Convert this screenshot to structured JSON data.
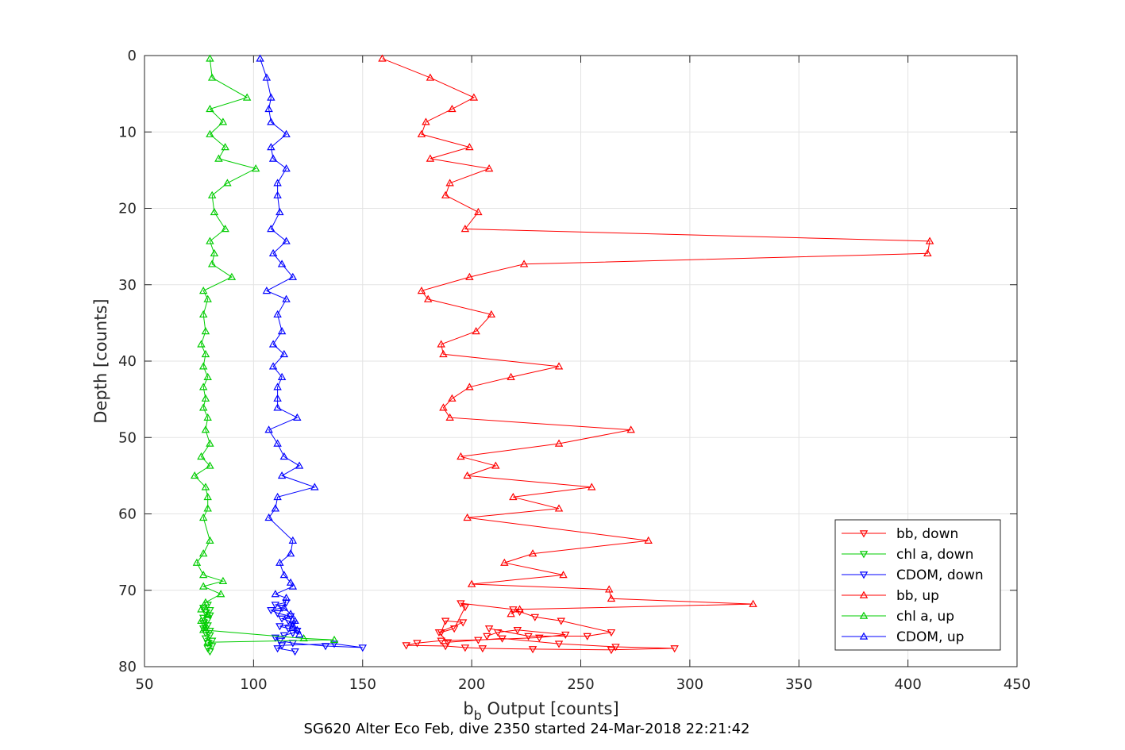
{
  "chart_data": {
    "type": "line",
    "title": "SG620 Alter Eco Feb, dive 2350 started 24-Mar-2018 22:21:42",
    "xlabel_main": "b",
    "xlabel_sub": "b",
    "xlabel_rest": " Output [counts]",
    "ylabel": "Depth [counts]",
    "xlim": [
      50,
      450
    ],
    "ylim": [
      0,
      80
    ],
    "y_reversed": true,
    "grid": true,
    "legend_position": "bottom-right",
    "xticks": [
      50,
      100,
      150,
      200,
      250,
      300,
      350,
      400,
      450
    ],
    "yticks": [
      0,
      10,
      20,
      30,
      40,
      50,
      60,
      70,
      80
    ],
    "xtick_labels": [
      "50",
      "100",
      "150",
      "200",
      "250",
      "300",
      "350",
      "400",
      "450"
    ],
    "ytick_labels": [
      "0",
      "10",
      "20",
      "30",
      "40",
      "50",
      "60",
      "70",
      "80"
    ],
    "series": [
      {
        "name": "bb, down",
        "color": "#ff0000",
        "marker": "triangle-down",
        "points": [
          [
            207,
            76.0
          ],
          [
            212,
            75.5
          ],
          [
            221,
            75.2
          ],
          [
            243,
            75.8
          ],
          [
            231,
            76.2
          ],
          [
            203,
            76.5
          ],
          [
            186,
            76.6
          ],
          [
            175,
            76.9
          ],
          [
            170,
            77.2
          ],
          [
            188,
            77.3
          ],
          [
            197,
            77.5
          ],
          [
            205,
            77.6
          ],
          [
            228,
            77.7
          ],
          [
            264,
            77.8
          ],
          [
            293,
            77.6
          ],
          [
            266,
            77.4
          ],
          [
            240,
            77.0
          ],
          [
            214,
            76.3
          ],
          [
            189,
            76.8
          ],
          [
            185,
            75.5
          ],
          [
            196,
            74.2
          ],
          [
            188,
            74.0
          ],
          [
            186,
            75.5
          ],
          [
            192,
            75.0
          ],
          [
            197,
            72.2
          ],
          [
            195,
            71.7
          ],
          [
            219,
            72.5
          ],
          [
            222,
            72.8
          ],
          [
            229,
            73.5
          ],
          [
            241,
            74.0
          ],
          [
            264,
            75.5
          ],
          [
            253,
            76.0
          ],
          [
            226,
            76.0
          ],
          [
            208,
            75.0
          ]
        ]
      },
      {
        "name": "chl a, down",
        "color": "#00cc00",
        "marker": "triangle-down",
        "points": [
          [
            80,
            78.0
          ],
          [
            79,
            77.6
          ],
          [
            81,
            77.3
          ],
          [
            79,
            76.9
          ],
          [
            81,
            76.6
          ],
          [
            78,
            76.3
          ],
          [
            80,
            75.9
          ],
          [
            78,
            75.6
          ],
          [
            80,
            75.3
          ],
          [
            77,
            75.0
          ],
          [
            79,
            74.6
          ],
          [
            77,
            74.3
          ],
          [
            79,
            73.9
          ],
          [
            77,
            73.6
          ],
          [
            80,
            73.3
          ],
          [
            78,
            72.9
          ],
          [
            80,
            72.6
          ],
          [
            77,
            72.3
          ],
          [
            79,
            71.9
          ]
        ]
      },
      {
        "name": "CDOM, down",
        "color": "#0000ff",
        "marker": "triangle-down",
        "points": [
          [
            119,
            78.0
          ],
          [
            111,
            77.6
          ],
          [
            113,
            77.2
          ],
          [
            137,
            77.0
          ],
          [
            150,
            77.5
          ],
          [
            133,
            77.3
          ],
          [
            118,
            76.9
          ],
          [
            112,
            76.6
          ],
          [
            110,
            76.2
          ],
          [
            114,
            75.9
          ],
          [
            118,
            75.6
          ],
          [
            120,
            75.3
          ],
          [
            116,
            75.0
          ],
          [
            112,
            74.7
          ],
          [
            118,
            74.4
          ],
          [
            116,
            74.0
          ],
          [
            113,
            73.7
          ],
          [
            117,
            73.4
          ],
          [
            111,
            73.0
          ],
          [
            108,
            72.6
          ],
          [
            113,
            72.3
          ],
          [
            110,
            71.9
          ],
          [
            115,
            71.6
          ]
        ]
      },
      {
        "name": "bb, up",
        "color": "#ff0000",
        "marker": "triangle-up",
        "points": [
          [
            159,
            0.4
          ],
          [
            181,
            2.9
          ],
          [
            201,
            5.5
          ],
          [
            191,
            7.0
          ],
          [
            179,
            8.7
          ],
          [
            177,
            10.3
          ],
          [
            199,
            12.0
          ],
          [
            181,
            13.5
          ],
          [
            208,
            14.8
          ],
          [
            190,
            16.7
          ],
          [
            188,
            18.3
          ],
          [
            203,
            20.5
          ],
          [
            197,
            22.7
          ],
          [
            410,
            24.3
          ],
          [
            409,
            25.9
          ],
          [
            224,
            27.3
          ],
          [
            199,
            29.0
          ],
          [
            177,
            30.8
          ],
          [
            180,
            31.9
          ],
          [
            209,
            33.9
          ],
          [
            202,
            36.1
          ],
          [
            186,
            37.8
          ],
          [
            187,
            39.1
          ],
          [
            240,
            40.7
          ],
          [
            218,
            42.1
          ],
          [
            199,
            43.4
          ],
          [
            191,
            44.9
          ],
          [
            187,
            46.1
          ],
          [
            190,
            47.4
          ],
          [
            273,
            49.0
          ],
          [
            240,
            50.8
          ],
          [
            195,
            52.5
          ],
          [
            211,
            53.7
          ],
          [
            198,
            55.0
          ],
          [
            255,
            56.5
          ],
          [
            219,
            57.8
          ],
          [
            240,
            59.3
          ],
          [
            198,
            60.5
          ],
          [
            281,
            63.5
          ],
          [
            228,
            65.2
          ],
          [
            215,
            66.4
          ],
          [
            242,
            68.0
          ],
          [
            200,
            69.2
          ],
          [
            263,
            69.9
          ],
          [
            264,
            71.1
          ],
          [
            329,
            71.8
          ],
          [
            222,
            72.5
          ],
          [
            218,
            73.1
          ]
        ]
      },
      {
        "name": "chl a, up",
        "color": "#00cc00",
        "marker": "triangle-up",
        "points": [
          [
            80,
            0.4
          ],
          [
            81,
            2.9
          ],
          [
            97,
            5.5
          ],
          [
            80,
            7.0
          ],
          [
            86,
            8.7
          ],
          [
            80,
            10.3
          ],
          [
            87,
            12.0
          ],
          [
            84,
            13.5
          ],
          [
            101,
            14.8
          ],
          [
            88,
            16.7
          ],
          [
            81,
            18.3
          ],
          [
            82,
            20.5
          ],
          [
            87,
            22.7
          ],
          [
            80,
            24.3
          ],
          [
            82,
            25.9
          ],
          [
            81,
            27.3
          ],
          [
            90,
            29.0
          ],
          [
            77,
            30.8
          ],
          [
            79,
            31.9
          ],
          [
            77,
            33.9
          ],
          [
            78,
            36.1
          ],
          [
            76,
            37.8
          ],
          [
            78,
            39.1
          ],
          [
            77,
            40.7
          ],
          [
            79,
            42.1
          ],
          [
            77,
            43.4
          ],
          [
            78,
            44.9
          ],
          [
            77,
            46.1
          ],
          [
            79,
            47.4
          ],
          [
            78,
            49.0
          ],
          [
            80,
            50.8
          ],
          [
            76,
            52.5
          ],
          [
            80,
            53.7
          ],
          [
            73,
            55.0
          ],
          [
            78,
            56.5
          ],
          [
            79,
            57.8
          ],
          [
            79,
            59.3
          ],
          [
            77,
            60.5
          ],
          [
            80,
            63.5
          ],
          [
            77,
            65.2
          ],
          [
            74,
            66.4
          ],
          [
            77,
            68.0
          ],
          [
            86,
            68.8
          ],
          [
            77,
            69.5
          ],
          [
            85,
            70.5
          ],
          [
            78,
            71.6
          ],
          [
            76,
            72.5
          ],
          [
            79,
            73.1
          ],
          [
            76,
            74.0
          ],
          [
            78,
            74.6
          ],
          [
            77,
            75.2
          ],
          [
            123,
            76.3
          ],
          [
            137,
            76.5
          ],
          [
            79,
            76.8
          ]
        ]
      },
      {
        "name": "CDOM, up",
        "color": "#0000ff",
        "marker": "triangle-up",
        "points": [
          [
            103,
            0.4
          ],
          [
            106,
            2.9
          ],
          [
            108,
            5.5
          ],
          [
            107,
            7.0
          ],
          [
            108,
            8.7
          ],
          [
            115,
            10.3
          ],
          [
            108,
            12.0
          ],
          [
            109,
            13.5
          ],
          [
            115,
            14.8
          ],
          [
            111,
            16.7
          ],
          [
            111,
            18.3
          ],
          [
            112,
            20.5
          ],
          [
            108,
            22.7
          ],
          [
            115,
            24.3
          ],
          [
            109,
            25.9
          ],
          [
            113,
            27.3
          ],
          [
            118,
            29.0
          ],
          [
            106,
            30.8
          ],
          [
            115,
            31.9
          ],
          [
            111,
            33.9
          ],
          [
            113,
            36.1
          ],
          [
            109,
            37.8
          ],
          [
            114,
            39.1
          ],
          [
            109,
            40.7
          ],
          [
            113,
            42.1
          ],
          [
            111,
            43.4
          ],
          [
            111,
            44.9
          ],
          [
            111,
            46.1
          ],
          [
            120,
            47.4
          ],
          [
            107,
            49.0
          ],
          [
            111,
            50.8
          ],
          [
            114,
            52.5
          ],
          [
            121,
            53.7
          ],
          [
            113,
            55.0
          ],
          [
            128,
            56.5
          ],
          [
            111,
            57.8
          ],
          [
            110,
            59.3
          ],
          [
            107,
            60.5
          ],
          [
            118,
            63.5
          ],
          [
            117,
            65.2
          ],
          [
            112,
            66.4
          ],
          [
            114,
            68.0
          ],
          [
            117,
            69.0
          ],
          [
            118,
            69.5
          ],
          [
            110,
            70.5
          ],
          [
            115,
            71.0
          ],
          [
            114,
            72.3
          ],
          [
            117,
            73.1
          ],
          [
            119,
            74.0
          ],
          [
            118,
            74.6
          ],
          [
            120,
            75.2
          ],
          [
            121,
            75.8
          ]
        ]
      }
    ]
  }
}
